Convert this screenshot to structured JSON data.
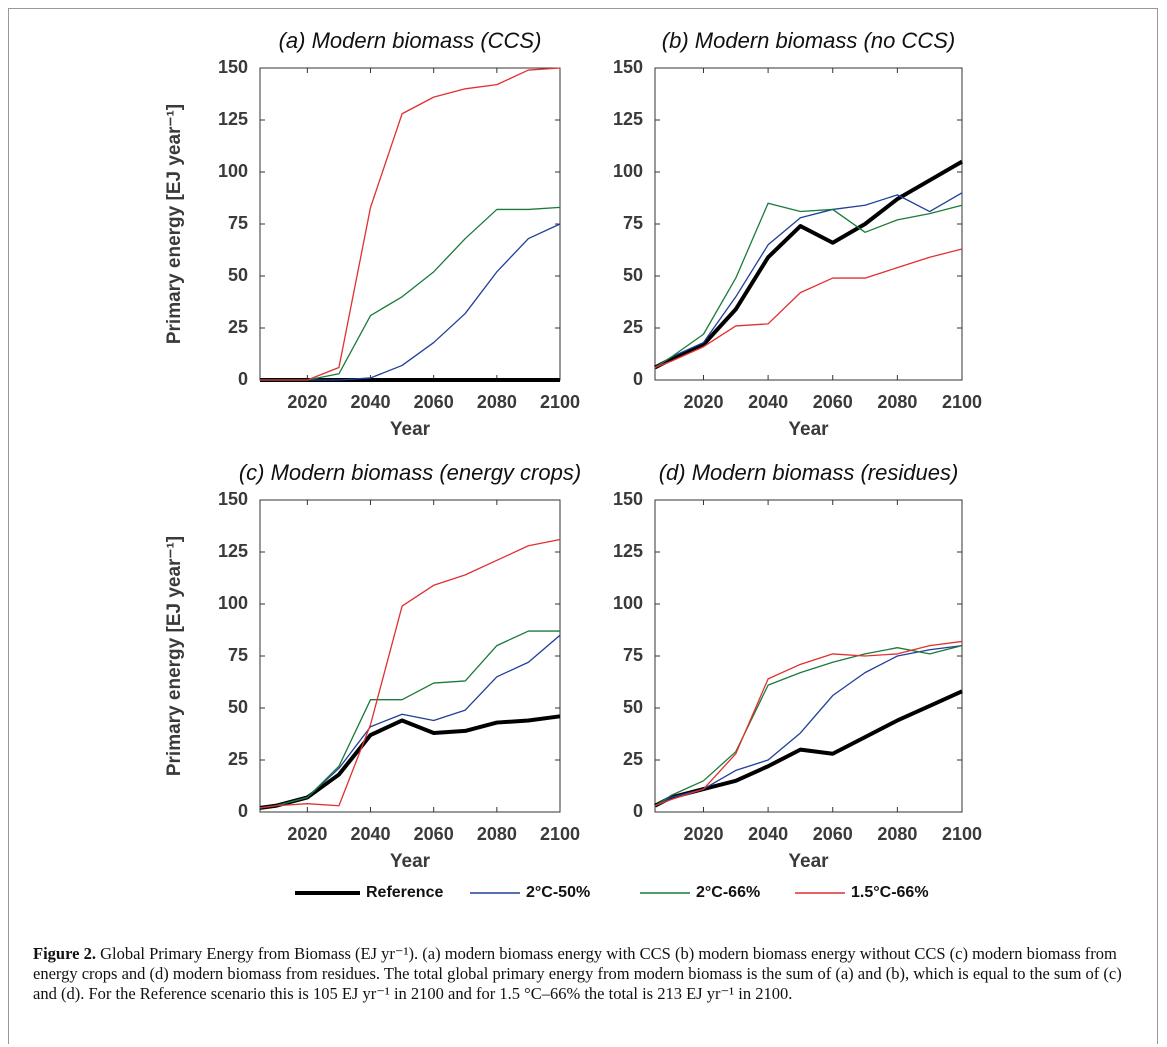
{
  "chart_data": [
    {
      "type": "line",
      "title": "(a) Modern biomass (CCS)",
      "x_label": "Year",
      "y_label": "Primary energy [EJ year⁻¹]",
      "x": [
        2005,
        2010,
        2020,
        2030,
        2040,
        2050,
        2060,
        2070,
        2080,
        2090,
        2100
      ],
      "xlim": [
        2005,
        2100
      ],
      "xticks": [
        2020,
        2040,
        2060,
        2080,
        2100
      ],
      "ylim": [
        0,
        150
      ],
      "yticks": [
        0,
        25,
        50,
        75,
        100,
        125,
        150
      ],
      "series": [
        {
          "name": "Reference",
          "color": "#000000",
          "values": [
            0,
            0,
            0,
            0,
            0,
            0,
            0,
            0,
            0,
            0,
            0
          ]
        },
        {
          "name": "2°C-50%",
          "color": "#1f3f99",
          "values": [
            0,
            0,
            0,
            0,
            1,
            7,
            18,
            32,
            52,
            68,
            75
          ]
        },
        {
          "name": "2°C-66%",
          "color": "#1a7a3a",
          "values": [
            0,
            0,
            0,
            3,
            31,
            40,
            52,
            68,
            82,
            82,
            83
          ]
        },
        {
          "name": "1.5°C-66%",
          "color": "#e03030",
          "values": [
            0,
            0,
            0,
            6,
            83,
            128,
            136,
            140,
            142,
            149,
            150
          ]
        }
      ]
    },
    {
      "type": "line",
      "title": "(b) Modern biomass (no CCS)",
      "x_label": "Year",
      "x": [
        2005,
        2010,
        2020,
        2030,
        2040,
        2050,
        2060,
        2070,
        2080,
        2090,
        2100
      ],
      "xlim": [
        2005,
        2100
      ],
      "xticks": [
        2020,
        2040,
        2060,
        2080,
        2100
      ],
      "ylim": [
        0,
        150
      ],
      "yticks": [
        0,
        25,
        50,
        75,
        100,
        125,
        150
      ],
      "series": [
        {
          "name": "Reference",
          "color": "#000000",
          "values": [
            6,
            10,
            17,
            34,
            59,
            74,
            66,
            75,
            87,
            96,
            105
          ]
        },
        {
          "name": "2°C-50%",
          "color": "#1f3f99",
          "values": [
            6,
            11,
            18,
            40,
            65,
            78,
            82,
            84,
            89,
            81,
            90
          ]
        },
        {
          "name": "2°C-66%",
          "color": "#1a7a3a",
          "values": [
            6,
            11,
            22,
            49,
            85,
            81,
            82,
            71,
            77,
            80,
            84
          ]
        },
        {
          "name": "1.5°C-66%",
          "color": "#e03030",
          "values": [
            6,
            9,
            16,
            26,
            27,
            42,
            49,
            49,
            54,
            59,
            63
          ]
        }
      ]
    },
    {
      "type": "line",
      "title": "(c) Modern biomass (energy crops)",
      "x_label": "Year",
      "y_label": "Primary energy [EJ year⁻¹]",
      "x": [
        2005,
        2010,
        2020,
        2030,
        2040,
        2050,
        2060,
        2070,
        2080,
        2090,
        2100
      ],
      "xlim": [
        2005,
        2100
      ],
      "xticks": [
        2020,
        2040,
        2060,
        2080,
        2100
      ],
      "ylim": [
        0,
        150
      ],
      "yticks": [
        0,
        25,
        50,
        75,
        100,
        125,
        150
      ],
      "series": [
        {
          "name": "Reference",
          "color": "#000000",
          "values": [
            2,
            3,
            7,
            18,
            37,
            44,
            38,
            39,
            43,
            44,
            46
          ]
        },
        {
          "name": "2°C-50%",
          "color": "#1f3f99",
          "values": [
            2,
            3,
            7,
            21,
            41,
            47,
            44,
            49,
            65,
            72,
            85
          ]
        },
        {
          "name": "2°C-66%",
          "color": "#1a7a3a",
          "values": [
            2,
            3,
            7,
            22,
            54,
            54,
            62,
            63,
            80,
            87,
            87
          ]
        },
        {
          "name": "1.5°C-66%",
          "color": "#e03030",
          "values": [
            2,
            3,
            4,
            3,
            42,
            99,
            109,
            114,
            121,
            128,
            131
          ]
        }
      ]
    },
    {
      "type": "line",
      "title": "(d) Modern biomass (residues)",
      "x_label": "Year",
      "x": [
        2005,
        2010,
        2020,
        2030,
        2040,
        2050,
        2060,
        2070,
        2080,
        2090,
        2100
      ],
      "xlim": [
        2005,
        2100
      ],
      "xticks": [
        2020,
        2040,
        2060,
        2080,
        2100
      ],
      "ylim": [
        0,
        150
      ],
      "yticks": [
        0,
        25,
        50,
        75,
        100,
        125,
        150
      ],
      "series": [
        {
          "name": "Reference",
          "color": "#000000",
          "values": [
            3,
            7,
            11,
            15,
            22,
            30,
            28,
            36,
            44,
            51,
            58
          ]
        },
        {
          "name": "2°C-50%",
          "color": "#1f3f99",
          "values": [
            3,
            7,
            11,
            20,
            25,
            38,
            56,
            67,
            75,
            78,
            80
          ]
        },
        {
          "name": "2°C-66%",
          "color": "#1a7a3a",
          "values": [
            3,
            8,
            15,
            29,
            61,
            67,
            72,
            76,
            79,
            76,
            80
          ]
        },
        {
          "name": "1.5°C-66%",
          "color": "#e03030",
          "values": [
            3,
            6,
            11,
            28,
            64,
            71,
            76,
            75,
            76,
            80,
            82
          ]
        }
      ]
    }
  ],
  "caption": {
    "label": "Figure 2.",
    "text": "Global Primary Energy from Biomass (EJ yr⁻¹). (a) modern biomass energy with CCS (b) modern biomass energy without CCS (c) modern biomass from energy crops and (d) modern biomass from residues. The total global primary energy from modern biomass is the sum of (a) and (b), which is equal to the sum of (c) and (d). For the Reference scenario this is 105 EJ yr⁻¹ in 2100 and for 1.5 °C–66% the total is 213 EJ yr⁻¹ in 2100."
  }
}
